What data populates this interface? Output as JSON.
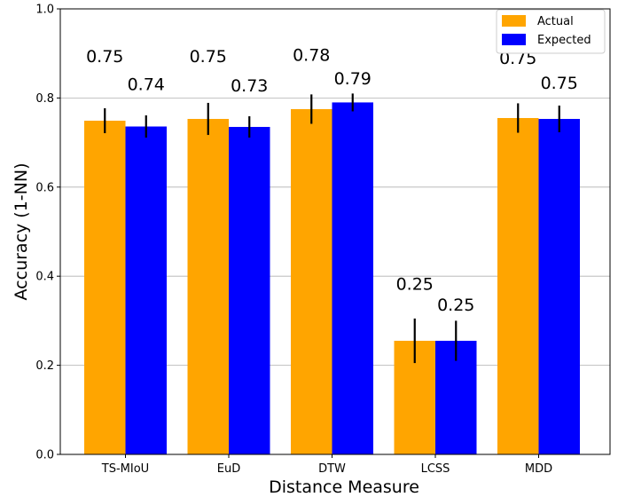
{
  "chart_data": {
    "type": "bar",
    "title": "",
    "xlabel": "Distance Measure",
    "ylabel": "Accuracy (1-NN)",
    "ylim": [
      0.0,
      1.0
    ],
    "yticks": [
      "0.0",
      "0.2",
      "0.4",
      "0.6",
      "0.8",
      "1.0"
    ],
    "ytick_values": [
      0.0,
      0.2,
      0.4,
      0.6,
      0.8,
      1.0
    ],
    "grid": "horizontal",
    "legend": "top-right",
    "categories": [
      "TS-MIoU",
      "EuD",
      "DTW",
      "LCSS",
      "MDD"
    ],
    "series": [
      {
        "name": "Actual",
        "color": "#FFA500",
        "values": [
          0.749,
          0.753,
          0.775,
          0.255,
          0.755
        ],
        "errors": [
          0.028,
          0.036,
          0.033,
          0.05,
          0.033
        ],
        "labels": [
          "0.75",
          "0.75",
          "0.78",
          "0.25",
          "0.75"
        ],
        "label_values": [
          0.88,
          0.88,
          0.883,
          0.37,
          0.876
        ]
      },
      {
        "name": "Expected",
        "color": "#0000FF",
        "values": [
          0.736,
          0.735,
          0.79,
          0.255,
          0.753
        ],
        "errors": [
          0.025,
          0.024,
          0.02,
          0.045,
          0.03
        ],
        "labels": [
          "0.74",
          "0.73",
          "0.79",
          "0.25",
          "0.75"
        ],
        "label_values": [
          0.818,
          0.815,
          0.831,
          0.323,
          0.821
        ]
      }
    ]
  }
}
